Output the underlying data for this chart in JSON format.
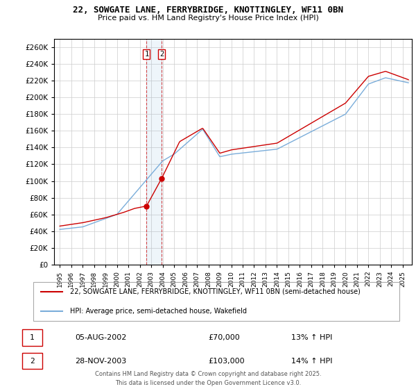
{
  "title": "22, SOWGATE LANE, FERRYBRIDGE, KNOTTINGLEY, WF11 0BN",
  "subtitle": "Price paid vs. HM Land Registry's House Price Index (HPI)",
  "legend_line1": "22, SOWGATE LANE, FERRYBRIDGE, KNOTTINGLEY, WF11 0BN (semi-detached house)",
  "legend_line2": "HPI: Average price, semi-detached house, Wakefield",
  "footer": "Contains HM Land Registry data © Crown copyright and database right 2025.\nThis data is licensed under the Open Government Licence v3.0.",
  "annotation1_label": "1",
  "annotation1_date": "05-AUG-2002",
  "annotation1_price": "£70,000",
  "annotation1_hpi": "13% ↑ HPI",
  "annotation2_label": "2",
  "annotation2_date": "28-NOV-2003",
  "annotation2_price": "£103,000",
  "annotation2_hpi": "14% ↑ HPI",
  "red_color": "#cc0000",
  "blue_color": "#7aadda",
  "background_color": "#ffffff",
  "grid_color": "#cccccc",
  "ylim": [
    0,
    270000
  ],
  "yticks": [
    0,
    20000,
    40000,
    60000,
    80000,
    100000,
    120000,
    140000,
    160000,
    180000,
    200000,
    220000,
    240000,
    260000
  ],
  "sale1_year": 2002.59,
  "sale1_price": 70000,
  "sale2_year": 2003.91,
  "sale2_price": 103000
}
